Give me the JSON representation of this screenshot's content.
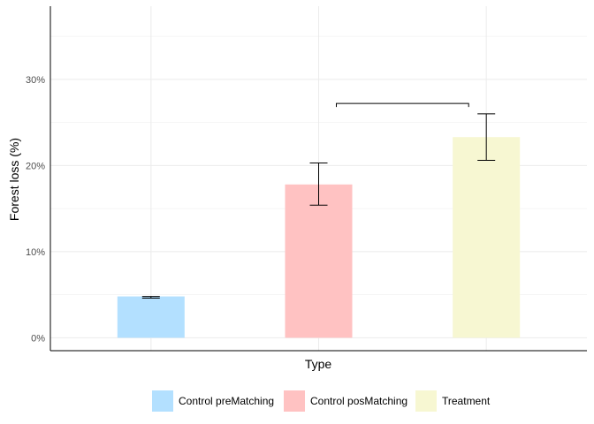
{
  "chart_data": {
    "type": "bar",
    "title": "",
    "xlabel": "Type",
    "ylabel": "Forest loss (%)",
    "ylim": [
      -1.5,
      38.5
    ],
    "y_ticks": [
      0,
      10,
      20,
      30
    ],
    "y_tick_labels": [
      "0%",
      "10%",
      "20%",
      "30%"
    ],
    "grid": true,
    "legend_position": "bottom",
    "categories": [
      "Control preMatching",
      "Control posMatching",
      "Treatment"
    ],
    "values": [
      4.8,
      17.8,
      23.3
    ],
    "error_low": [
      4.6,
      15.4,
      20.6
    ],
    "error_high": [
      4.8,
      20.3,
      26.0
    ],
    "colors": [
      "#b3e0ff",
      "#ffc2c2",
      "#f7f7d2"
    ],
    "significance_bracket": {
      "from": "Control posMatching",
      "to": "Treatment",
      "y": 27.2
    }
  }
}
